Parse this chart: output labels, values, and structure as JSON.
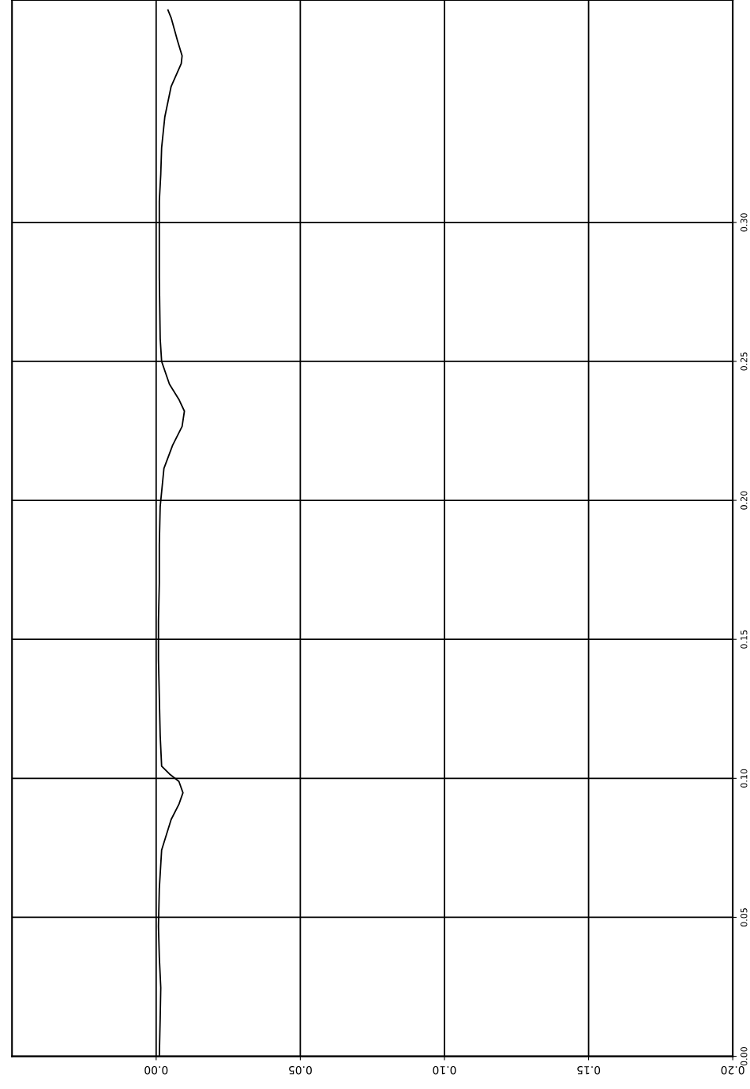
{
  "chart_data": {
    "type": "line",
    "series": [
      {
        "color": "#000000",
        "x": [
          0.0011,
          0.0014,
          0.0016,
          0.0011,
          0.0008,
          0.0011,
          0.0019,
          0.0052,
          0.0079,
          0.0093,
          0.0079,
          0.0046,
          0.0019,
          0.0014,
          0.0011,
          0.0008,
          0.0008,
          0.0011,
          0.0011,
          0.0014,
          0.0027,
          0.0057,
          0.009,
          0.0098,
          0.0079,
          0.0046,
          0.0019,
          0.0014,
          0.0011,
          0.0011,
          0.0011,
          0.0016,
          0.0019,
          0.003,
          0.0052,
          0.0087,
          0.009,
          0.0074,
          0.0052,
          0.0041
        ],
        "values": [
          0,
          0.0137,
          0.0247,
          0.0357,
          0.0467,
          0.0604,
          0.0742,
          0.0852,
          0.0907,
          0.0948,
          0.0989,
          0.1016,
          0.1044,
          0.1154,
          0.1291,
          0.1429,
          0.1566,
          0.1703,
          0.1841,
          0.1978,
          0.2115,
          0.2198,
          0.2266,
          0.2321,
          0.2363,
          0.2418,
          0.25,
          0.2582,
          0.2802,
          0.294,
          0.3077,
          0.3173,
          0.3269,
          0.3379,
          0.3489,
          0.3571,
          0.3599,
          0.3654,
          0.3736,
          0.3764
        ]
      }
    ],
    "ylim": [
      0,
      0.38
    ],
    "yticks": [
      {
        "value": 0,
        "label": "0.00"
      },
      {
        "value": 0.05,
        "label": "0.05"
      },
      {
        "value": 0.1,
        "label": "0.10"
      },
      {
        "value": 0.15,
        "label": "0.15"
      },
      {
        "value": 0.2,
        "label": "0.20"
      },
      {
        "value": 0.25,
        "label": "0.25"
      },
      {
        "value": 0.3,
        "label": "0.30"
      }
    ],
    "xlim": [
      -0.05,
      0.2
    ],
    "xticks": [
      {
        "value": 0,
        "label": "0.00"
      },
      {
        "value": 0.05,
        "label": "0.05"
      },
      {
        "value": 0.1,
        "label": "0.10"
      },
      {
        "value": 0.15,
        "label": "0.15"
      },
      {
        "value": 0.2,
        "label": "0.20"
      }
    ],
    "grid": true,
    "marker": "none",
    "line_style": "solid"
  }
}
